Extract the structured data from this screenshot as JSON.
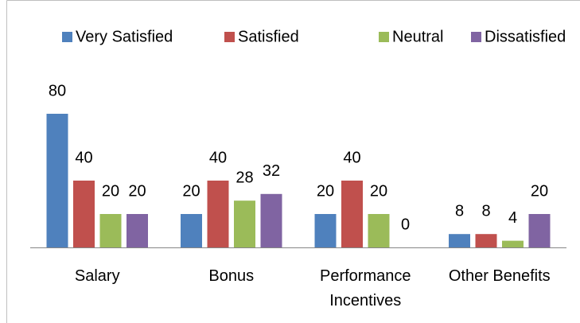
{
  "chart_data": {
    "type": "bar",
    "categories": [
      "Salary",
      "Bonus",
      "Performance Incentives",
      "Other Benefits"
    ],
    "series": [
      {
        "name": "Very Satisfied",
        "color": "#4f81bd",
        "values": [
          80,
          20,
          20,
          8
        ]
      },
      {
        "name": "Satisfied",
        "color": "#c0504d",
        "values": [
          40,
          40,
          40,
          8
        ]
      },
      {
        "name": "Neutral",
        "color": "#9bbb59",
        "values": [
          20,
          28,
          20,
          4
        ]
      },
      {
        "name": "Dissatisfied",
        "color": "#8064a2",
        "values": [
          20,
          32,
          0,
          20
        ]
      }
    ],
    "legend": "top"
  }
}
